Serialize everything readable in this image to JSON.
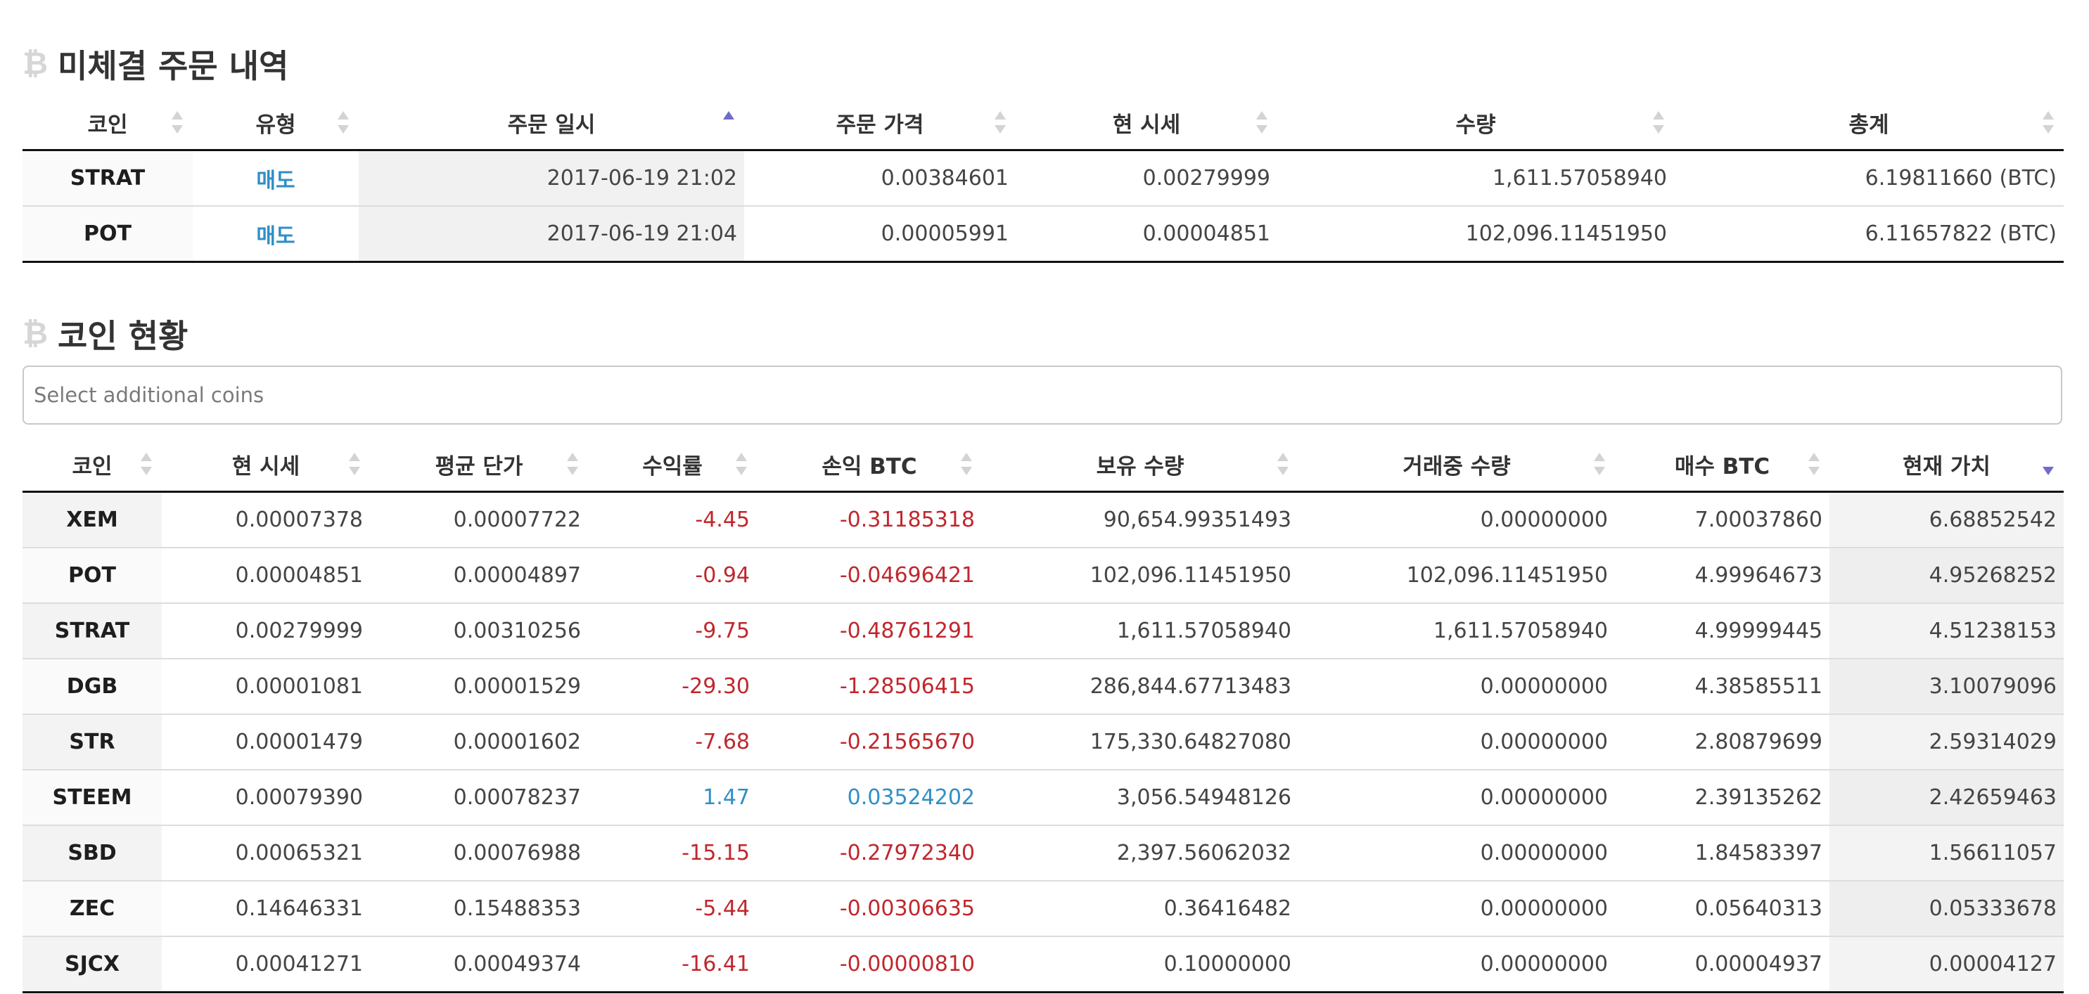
{
  "open_orders": {
    "title": "미체결 주문 내역",
    "columns": [
      "코인",
      "유형",
      "주문 일시",
      "주문 가격",
      "현 시세",
      "수량",
      "총계"
    ],
    "rows": [
      [
        "STRAT",
        "매도",
        "2017-06-19 21:02",
        "0.00384601",
        "0.00279999",
        "1,611.57058940",
        "6.19811660 (BTC)"
      ],
      [
        "POT",
        "매도",
        "2017-06-19 21:04",
        "0.00005991",
        "0.00004851",
        "102,096.11451950",
        "6.11657822 (BTC)"
      ]
    ]
  },
  "coin_status": {
    "title": "코인 현황",
    "search_placeholder": "Select additional coins",
    "columns": [
      "코인",
      "현 시세",
      "평균 단가",
      "수익률",
      "손익 BTC",
      "보유 수량",
      "거래중 수량",
      "매수 BTC",
      "현재 가치"
    ],
    "rows": [
      [
        "XEM",
        "0.00007378",
        "0.00007722",
        "-4.45",
        "-0.31185318",
        "90,654.99351493",
        "0.00000000",
        "7.00037860",
        "6.68852542"
      ],
      [
        "POT",
        "0.00004851",
        "0.00004897",
        "-0.94",
        "-0.04696421",
        "102,096.11451950",
        "102,096.11451950",
        "4.99964673",
        "4.95268252"
      ],
      [
        "STRAT",
        "0.00279999",
        "0.00310256",
        "-9.75",
        "-0.48761291",
        "1,611.57058940",
        "1,611.57058940",
        "4.99999445",
        "4.51238153"
      ],
      [
        "DGB",
        "0.00001081",
        "0.00001529",
        "-29.30",
        "-1.28506415",
        "286,844.67713483",
        "0.00000000",
        "4.38585511",
        "3.10079096"
      ],
      [
        "STR",
        "0.00001479",
        "0.00001602",
        "-7.68",
        "-0.21565670",
        "175,330.64827080",
        "0.00000000",
        "2.80879699",
        "2.59314029"
      ],
      [
        "STEEM",
        "0.00079390",
        "0.00078237",
        "1.47",
        "0.03524202",
        "3,056.54948126",
        "0.00000000",
        "2.39135262",
        "2.42659463"
      ],
      [
        "SBD",
        "0.00065321",
        "0.00076988",
        "-15.15",
        "-0.27972340",
        "2,397.56062032",
        "0.00000000",
        "1.84583397",
        "1.56611057"
      ],
      [
        "ZEC",
        "0.14646331",
        "0.15488353",
        "-5.44",
        "-0.00306635",
        "0.36416482",
        "0.00000000",
        "0.05640313",
        "0.05333678"
      ],
      [
        "SJCX",
        "0.00041271",
        "0.00049374",
        "-16.41",
        "-0.00000810",
        "0.10000000",
        "0.00000000",
        "0.00004937",
        "0.00004127"
      ]
    ]
  },
  "colors": {
    "positive": "#2f8fc7",
    "negative": "#c0272d",
    "sort_active": "#6f6cc9"
  }
}
